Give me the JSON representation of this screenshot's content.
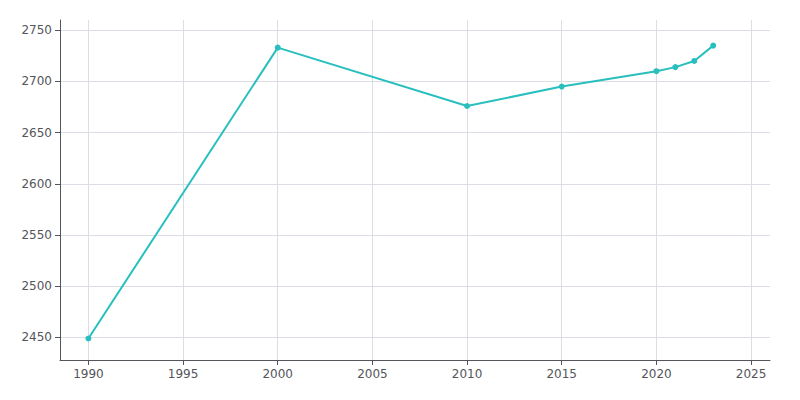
{
  "chart_data": {
    "type": "line",
    "x": [
      1990,
      2000,
      2010,
      2015,
      2020,
      2021,
      2022,
      2023
    ],
    "values": [
      2449,
      2733,
      2676,
      2695,
      2710,
      2714,
      2720,
      2735
    ],
    "color": "#29BFBF",
    "marker": "circle",
    "xlim": [
      1988.5,
      2026
    ],
    "ylim": [
      2428,
      2760
    ],
    "xticks": [
      1990,
      1995,
      2000,
      2005,
      2010,
      2015,
      2020,
      2025
    ],
    "yticks": [
      2450,
      2500,
      2550,
      2600,
      2650,
      2700,
      2750
    ],
    "grid": true
  }
}
